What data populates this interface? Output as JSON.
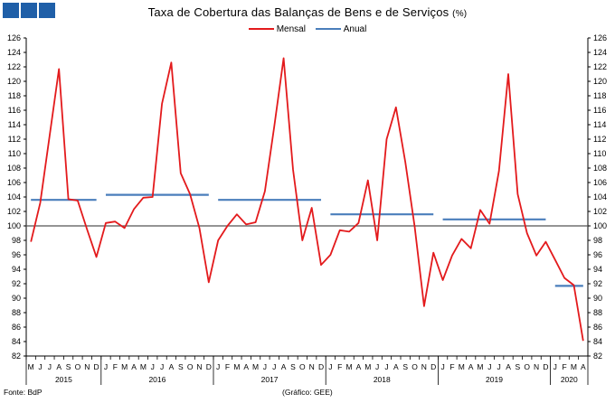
{
  "header": {
    "title": "Taxa de Cobertura das Balanças de Bens e de Serviços",
    "unit": "(%)"
  },
  "legend": [
    {
      "label": "Mensal",
      "color": "#e31a1c"
    },
    {
      "label": "Anual",
      "color": "#4a7ebb"
    }
  ],
  "footer": {
    "source": "Fonte: BdP",
    "credit": "(Gráfico: GEE)"
  },
  "colors": {
    "monthly": "#e31a1c",
    "annual": "#4a7ebb",
    "reference": "#555555",
    "logo": "#1f5fa8"
  },
  "chart_data": {
    "type": "line",
    "title": "Taxa de Cobertura das Balanças de Bens e de Serviços (%)",
    "ylim": [
      82,
      126
    ],
    "y_ticks": [
      82,
      84,
      86,
      88,
      90,
      92,
      94,
      96,
      98,
      100,
      102,
      104,
      106,
      108,
      110,
      112,
      114,
      116,
      118,
      120,
      122,
      124,
      126
    ],
    "reference_line": 100,
    "grid": false,
    "legend_position": "top-center",
    "x": [
      "M",
      "J",
      "J",
      "A",
      "S",
      "O",
      "N",
      "D",
      "J",
      "F",
      "M",
      "A",
      "M",
      "J",
      "J",
      "A",
      "S",
      "O",
      "N",
      "D",
      "J",
      "F",
      "M",
      "A",
      "M",
      "J",
      "J",
      "A",
      "S",
      "O",
      "N",
      "D",
      "J",
      "F",
      "M",
      "A",
      "M",
      "J",
      "J",
      "A",
      "S",
      "O",
      "N",
      "D",
      "J",
      "F",
      "M",
      "A",
      "M",
      "J",
      "J",
      "A",
      "S",
      "O",
      "N",
      "D",
      "J",
      "F",
      "M",
      "A"
    ],
    "year_labels": [
      {
        "year": "2015",
        "start": 0,
        "end": 7
      },
      {
        "year": "2016",
        "start": 8,
        "end": 19
      },
      {
        "year": "2017",
        "start": 20,
        "end": 31
      },
      {
        "year": "2018",
        "start": 32,
        "end": 43
      },
      {
        "year": "2019",
        "start": 44,
        "end": 55
      },
      {
        "year": "2020",
        "start": 56,
        "end": 59
      }
    ],
    "series": [
      {
        "name": "Mensal",
        "values": [
          97.8,
          103.2,
          112.5,
          121.7,
          103.7,
          103.5,
          99.5,
          95.7,
          100.4,
          100.6,
          99.7,
          102.3,
          103.9,
          104.0,
          116.9,
          122.6,
          107.3,
          104.4,
          99.7,
          92.2,
          98.0,
          100.0,
          101.6,
          100.2,
          100.5,
          104.8,
          113.8,
          123.2,
          107.8,
          98.0,
          102.5,
          94.6,
          96.0,
          99.4,
          99.2,
          100.4,
          106.3,
          98.0,
          112.0,
          116.4,
          108.8,
          99.9,
          88.9,
          96.3,
          92.5,
          95.9,
          98.2,
          96.9,
          102.2,
          100.3,
          107.6,
          121.0,
          104.4,
          99.0,
          95.9,
          97.8,
          95.3,
          92.8,
          91.8,
          84.1
        ]
      },
      {
        "name": "Anual",
        "segments": [
          {
            "start": 0,
            "end": 7,
            "value": 103.6
          },
          {
            "start": 8,
            "end": 19,
            "value": 104.3
          },
          {
            "start": 20,
            "end": 31,
            "value": 103.6
          },
          {
            "start": 32,
            "end": 43,
            "value": 101.6
          },
          {
            "start": 44,
            "end": 55,
            "value": 100.9
          },
          {
            "start": 56,
            "end": 59,
            "value": 91.7
          }
        ]
      }
    ]
  }
}
